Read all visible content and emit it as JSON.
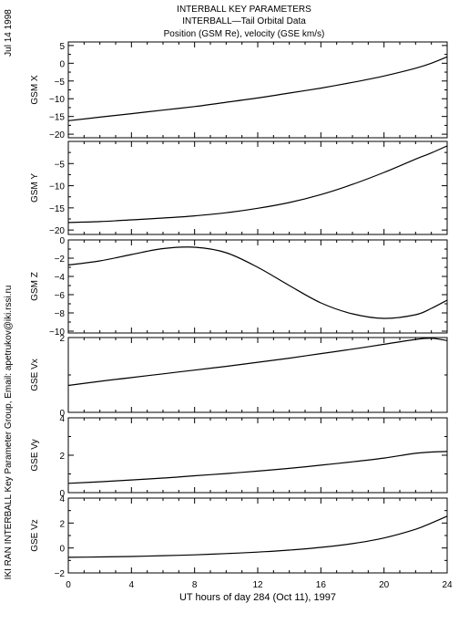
{
  "header": {
    "title": "INTERBALL KEY PARAMETERS",
    "subtitle": "INTERBALL—Tail Orbital Data",
    "caption": "Position (GSM Re), velocity (GSE km/s)"
  },
  "side_text": {
    "date": "Jul 14 1998",
    "credit": "IKI RAN INTERBALL Key Parameter Group, Email: apetrukov@iki.rssi.ru"
  },
  "chart_data": {
    "type": "line",
    "xlabel": "UT hours of day 284 (Oct 11), 1997",
    "xlim": [
      0,
      24
    ],
    "xticks": [
      0,
      4,
      8,
      12,
      16,
      20,
      24
    ],
    "x": [
      0,
      2,
      4,
      6,
      8,
      10,
      12,
      14,
      16,
      18,
      20,
      22,
      23,
      24
    ],
    "panels": [
      {
        "ylabel": "GSM X",
        "ylim": [
          -21,
          6
        ],
        "yticks": [
          5,
          0,
          -5,
          -10,
          -15,
          -20
        ],
        "values": [
          -16.2,
          -15.2,
          -14.2,
          -13.2,
          -12.2,
          -11.0,
          -9.8,
          -8.4,
          -7.0,
          -5.4,
          -3.6,
          -1.4,
          0.0,
          1.8
        ]
      },
      {
        "ylabel": "GSM Y",
        "ylim": [
          -21,
          0
        ],
        "yticks": [
          -5,
          -10,
          -15,
          -20
        ],
        "values": [
          -18.3,
          -18.1,
          -17.7,
          -17.3,
          -16.8,
          -16.1,
          -15.1,
          -13.8,
          -12.0,
          -9.7,
          -7.0,
          -4.0,
          -2.6,
          -1.0
        ]
      },
      {
        "ylabel": "GSM Z",
        "ylim": [
          -10.2,
          0
        ],
        "yticks": [
          0,
          -2,
          -4,
          -6,
          -8,
          -10
        ],
        "values": [
          -2.75,
          -2.3,
          -1.6,
          -0.95,
          -0.8,
          -1.4,
          -3.0,
          -5.0,
          -6.9,
          -8.1,
          -8.6,
          -8.2,
          -7.5,
          -6.6
        ]
      },
      {
        "ylabel": "GSE Vx",
        "ylim": [
          0,
          2
        ],
        "yticks": [
          2,
          0
        ],
        "values": [
          0.72,
          0.83,
          0.93,
          1.03,
          1.13,
          1.23,
          1.34,
          1.45,
          1.57,
          1.69,
          1.82,
          1.95,
          1.98,
          1.92
        ]
      },
      {
        "ylabel": "GSE Vy",
        "ylim": [
          0,
          4
        ],
        "yticks": [
          4,
          2,
          0
        ],
        "values": [
          0.5,
          0.58,
          0.68,
          0.78,
          0.9,
          1.02,
          1.15,
          1.3,
          1.47,
          1.65,
          1.85,
          2.1,
          2.17,
          2.2
        ]
      },
      {
        "ylabel": "GSE Vz",
        "ylim": [
          -2,
          4
        ],
        "yticks": [
          4,
          2,
          0,
          -2
        ],
        "values": [
          -0.75,
          -0.72,
          -0.68,
          -0.62,
          -0.55,
          -0.45,
          -0.33,
          -0.17,
          0.05,
          0.35,
          0.8,
          1.5,
          2.0,
          2.55
        ]
      }
    ]
  }
}
